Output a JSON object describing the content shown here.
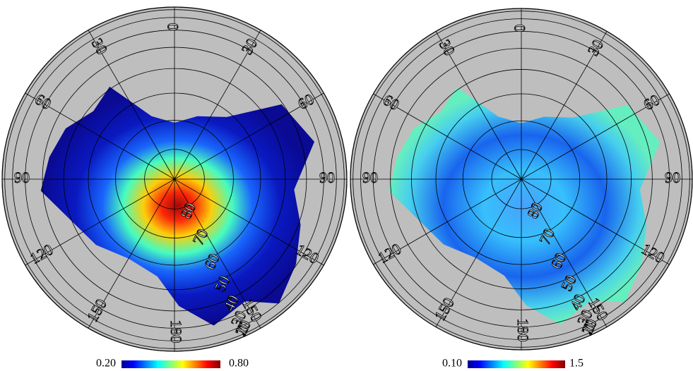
{
  "panels": [
    {
      "longitudes": [
        0,
        30,
        60,
        90,
        120,
        150,
        180
      ],
      "west_longitudes": [
        30,
        60,
        90,
        120,
        150
      ],
      "latitudes": [
        80,
        70,
        60,
        50,
        40,
        30,
        20,
        10,
        0
      ],
      "colorbar": {
        "min": {
          "value": 0.2,
          "label": "0.20"
        },
        "max": {
          "value": 0.8,
          "label": "0.80"
        }
      }
    },
    {
      "longitudes": [
        0,
        30,
        60,
        90,
        120,
        150,
        180
      ],
      "west_longitudes": [
        30,
        60,
        90,
        120,
        150
      ],
      "latitudes": [
        80,
        70,
        60,
        50,
        40,
        30,
        20,
        10,
        0
      ],
      "colorbar": {
        "min": {
          "value": 0.1,
          "label": "0.10"
        },
        "max": 1.5
      }
    }
  ]
}
